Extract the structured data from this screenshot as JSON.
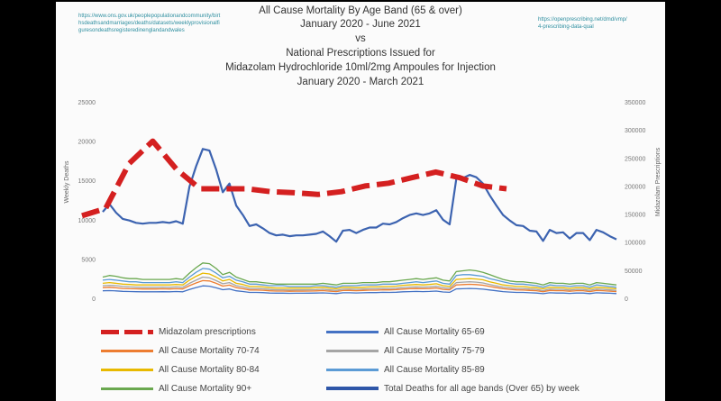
{
  "title_lines": [
    "All Cause Mortality By Age Band (65 & over)",
    "January 2020 - June 2021",
    "vs",
    "National Prescriptions Issued for",
    "Midazolam Hydrochloride 10ml/2mg Ampoules for Injection",
    "January 2020 - March 2021"
  ],
  "url_left": "https://www.ons.gov.uk/peoplepopulationandcommunity/birthsdeathsandmarriages/deaths/datasets/weeklyprovisionalfiguresondeathsregisteredinenglandandwales",
  "url_right": "https://openprescribing.net/dmd/vmp/4-prescribing-data-qual",
  "chart_data": {
    "type": "line",
    "left_axis": {
      "label": "Weekly Deaths",
      "ticks": [
        "25000",
        "20000",
        "15000",
        "10000",
        "5000",
        "0"
      ],
      "ylim": [
        0,
        25000
      ]
    },
    "right_axis": {
      "label": "Midazolam Prescriptions",
      "ticks": [
        "350000",
        "300000",
        "250000",
        "200000",
        "150000",
        "100000",
        "50000",
        "0"
      ],
      "ylim": [
        0,
        350000
      ]
    },
    "x_count": 78,
    "series": [
      {
        "key": "total",
        "name": "Total Deaths for all age bands (Over 65) by week",
        "color": "#3c63b0",
        "axis": "left",
        "dash": false,
        "width": 2.2,
        "values": [
          11000,
          12000,
          10900,
          10100,
          9900,
          9600,
          9500,
          9600,
          9600,
          9700,
          9600,
          9800,
          9500,
          14200,
          16800,
          19000,
          18800,
          16400,
          13500,
          14600,
          11800,
          10600,
          9200,
          9400,
          8900,
          8300,
          8000,
          8100,
          7900,
          8000,
          8000,
          8100,
          8200,
          8500,
          7900,
          7200,
          8600,
          8700,
          8300,
          8700,
          9000,
          9000,
          9500,
          9400,
          9700,
          10200,
          10600,
          10800,
          10600,
          10800,
          11200,
          10000,
          9400,
          15200,
          15300,
          15700,
          15400,
          14600,
          13100,
          11800,
          10600,
          9900,
          9300,
          9200,
          8600,
          8500,
          7300,
          8700,
          8300,
          8400,
          7600,
          8300,
          8300,
          7400,
          8700,
          8400,
          7900,
          7500
        ]
      },
      {
        "key": "midazolam",
        "name": "Midazolam prescriptions",
        "color": "#d42020",
        "axis": "right",
        "dash": true,
        "width": 6,
        "values": [
          147000,
          160000,
          240000,
          280000,
          230000,
          195000,
          195000,
          195000,
          190000,
          188000,
          185000,
          190000,
          200000,
          205000,
          215000,
          225000,
          215000,
          200000,
          195000
        ]
      },
      {
        "key": "m9",
        "name": "All Cause Mortality 90+",
        "color": "#6aa84f",
        "axis": "left",
        "dash": false,
        "width": 1.3,
        "values": [
          2700,
          2900,
          2800,
          2600,
          2500,
          2500,
          2400,
          2400,
          2400,
          2400,
          2400,
          2500,
          2400,
          3200,
          3900,
          4500,
          4400,
          3800,
          3000,
          3300,
          2700,
          2400,
          2100,
          2100,
          2000,
          1900,
          1800,
          1800,
          1800,
          1800,
          1800,
          1800,
          1800,
          1900,
          1800,
          1700,
          1900,
          1900,
          1900,
          2000,
          2000,
          2000,
          2100,
          2100,
          2200,
          2300,
          2400,
          2500,
          2400,
          2500,
          2600,
          2300,
          2200,
          3400,
          3500,
          3600,
          3500,
          3300,
          3000,
          2700,
          2400,
          2200,
          2100,
          2100,
          2000,
          1900,
          1700,
          2000,
          1900,
          1900,
          1800,
          1900,
          1900,
          1700,
          2000,
          1900,
          1800,
          1700
        ]
      },
      {
        "key": "m8",
        "name": "All Cause Mortality 85-89",
        "color": "#5b9bd5",
        "axis": "left",
        "dash": false,
        "width": 1.3,
        "values": [
          2300,
          2400,
          2300,
          2200,
          2100,
          2100,
          2000,
          2000,
          2000,
          2000,
          2000,
          2100,
          2000,
          2700,
          3300,
          3800,
          3700,
          3200,
          2600,
          2800,
          2300,
          2100,
          1800,
          1800,
          1700,
          1600,
          1600,
          1600,
          1500,
          1500,
          1500,
          1500,
          1600,
          1600,
          1500,
          1400,
          1600,
          1600,
          1600,
          1700,
          1700,
          1700,
          1800,
          1800,
          1800,
          1900,
          2000,
          2100,
          2000,
          2100,
          2200,
          1900,
          1800,
          2900,
          3000,
          3000,
          2900,
          2800,
          2500,
          2300,
          2100,
          1900,
          1800,
          1800,
          1700,
          1600,
          1400,
          1700,
          1600,
          1600,
          1500,
          1600,
          1600,
          1400,
          1700,
          1600,
          1500,
          1400
        ]
      },
      {
        "key": "m7",
        "name": "All Cause Mortality 80-84",
        "color": "#e8b900",
        "axis": "left",
        "dash": false,
        "width": 1.3,
        "values": [
          1900,
          2000,
          1900,
          1800,
          1750,
          1700,
          1700,
          1700,
          1700,
          1700,
          1700,
          1750,
          1700,
          2300,
          2800,
          3200,
          3100,
          2700,
          2200,
          2400,
          1900,
          1750,
          1500,
          1500,
          1450,
          1350,
          1300,
          1300,
          1300,
          1300,
          1300,
          1300,
          1350,
          1400,
          1300,
          1200,
          1400,
          1400,
          1350,
          1400,
          1450,
          1450,
          1500,
          1500,
          1550,
          1650,
          1700,
          1750,
          1700,
          1750,
          1850,
          1600,
          1500,
          2400,
          2450,
          2500,
          2450,
          2350,
          2100,
          1900,
          1700,
          1600,
          1500,
          1500,
          1400,
          1350,
          1200,
          1400,
          1350,
          1350,
          1250,
          1350,
          1350,
          1200,
          1400,
          1350,
          1300,
          1200
        ]
      },
      {
        "key": "m6",
        "name": "All Cause Mortality 75-79",
        "color": "#a5a5a5",
        "axis": "left",
        "dash": false,
        "width": 1.3,
        "values": [
          1600,
          1650,
          1600,
          1500,
          1450,
          1420,
          1400,
          1400,
          1400,
          1420,
          1400,
          1450,
          1400,
          1900,
          2300,
          2700,
          2600,
          2250,
          1850,
          2000,
          1600,
          1450,
          1250,
          1250,
          1200,
          1120,
          1080,
          1080,
          1060,
          1070,
          1070,
          1080,
          1100,
          1150,
          1070,
          1000,
          1160,
          1170,
          1130,
          1170,
          1200,
          1200,
          1260,
          1250,
          1290,
          1370,
          1420,
          1450,
          1420,
          1450,
          1530,
          1340,
          1260,
          2000,
          2050,
          2100,
          2050,
          1950,
          1760,
          1580,
          1420,
          1330,
          1250,
          1250,
          1170,
          1130,
          980,
          1170,
          1130,
          1130,
          1040,
          1130,
          1120,
          1000,
          1170,
          1130,
          1070,
          1000
        ]
      },
      {
        "key": "m5",
        "name": "All Cause Mortality 70-74",
        "color": "#ed7d31",
        "axis": "left",
        "dash": false,
        "width": 1.3,
        "values": [
          1350,
          1400,
          1330,
          1250,
          1220,
          1200,
          1180,
          1180,
          1180,
          1200,
          1180,
          1220,
          1180,
          1600,
          1950,
          2250,
          2200,
          1900,
          1550,
          1680,
          1350,
          1220,
          1060,
          1060,
          1020,
          950,
          920,
          920,
          900,
          910,
          910,
          920,
          940,
          980,
          910,
          850,
          990,
          1000,
          960,
          1000,
          1030,
          1030,
          1080,
          1070,
          1100,
          1170,
          1210,
          1240,
          1210,
          1240,
          1310,
          1140,
          1080,
          1700,
          1740,
          1780,
          1740,
          1660,
          1500,
          1350,
          1210,
          1130,
          1070,
          1060,
          1000,
          960,
          840,
          1000,
          960,
          960,
          890,
          960,
          960,
          850,
          1000,
          960,
          910,
          850
        ]
      },
      {
        "key": "m4",
        "name": "All Cause Mortality 65-69",
        "color": "#4472c4",
        "axis": "left",
        "dash": false,
        "width": 1.3,
        "values": [
          950,
          980,
          940,
          880,
          860,
          840,
          830,
          830,
          830,
          840,
          830,
          860,
          830,
          1120,
          1370,
          1580,
          1540,
          1330,
          1090,
          1180,
          950,
          860,
          740,
          740,
          720,
          670,
          650,
          650,
          630,
          640,
          640,
          650,
          660,
          690,
          640,
          600,
          700,
          700,
          680,
          700,
          720,
          720,
          760,
          750,
          770,
          820,
          850,
          870,
          850,
          870,
          920,
          800,
          760,
          1190,
          1220,
          1250,
          1220,
          1160,
          1050,
          950,
          850,
          790,
          750,
          740,
          700,
          670,
          590,
          700,
          670,
          670,
          620,
          670,
          670,
          600,
          700,
          670,
          640,
          600
        ]
      }
    ]
  },
  "legend": [
    {
      "key": "midazolam",
      "label": "Midazolam prescriptions"
    },
    {
      "key": "m4",
      "label": "All Cause Mortality 65-69"
    },
    {
      "key": "m5",
      "label": "All Cause Mortality 70-74"
    },
    {
      "key": "m6",
      "label": "All Cause Mortality 75-79"
    },
    {
      "key": "m7",
      "label": "All Cause Mortality 80-84"
    },
    {
      "key": "m8",
      "label": "All Cause Mortality 85-89"
    },
    {
      "key": "m9",
      "label": "All Cause Mortality 90+"
    },
    {
      "key": "total",
      "label": "Total Deaths for all age bands (Over 65) by week"
    }
  ]
}
